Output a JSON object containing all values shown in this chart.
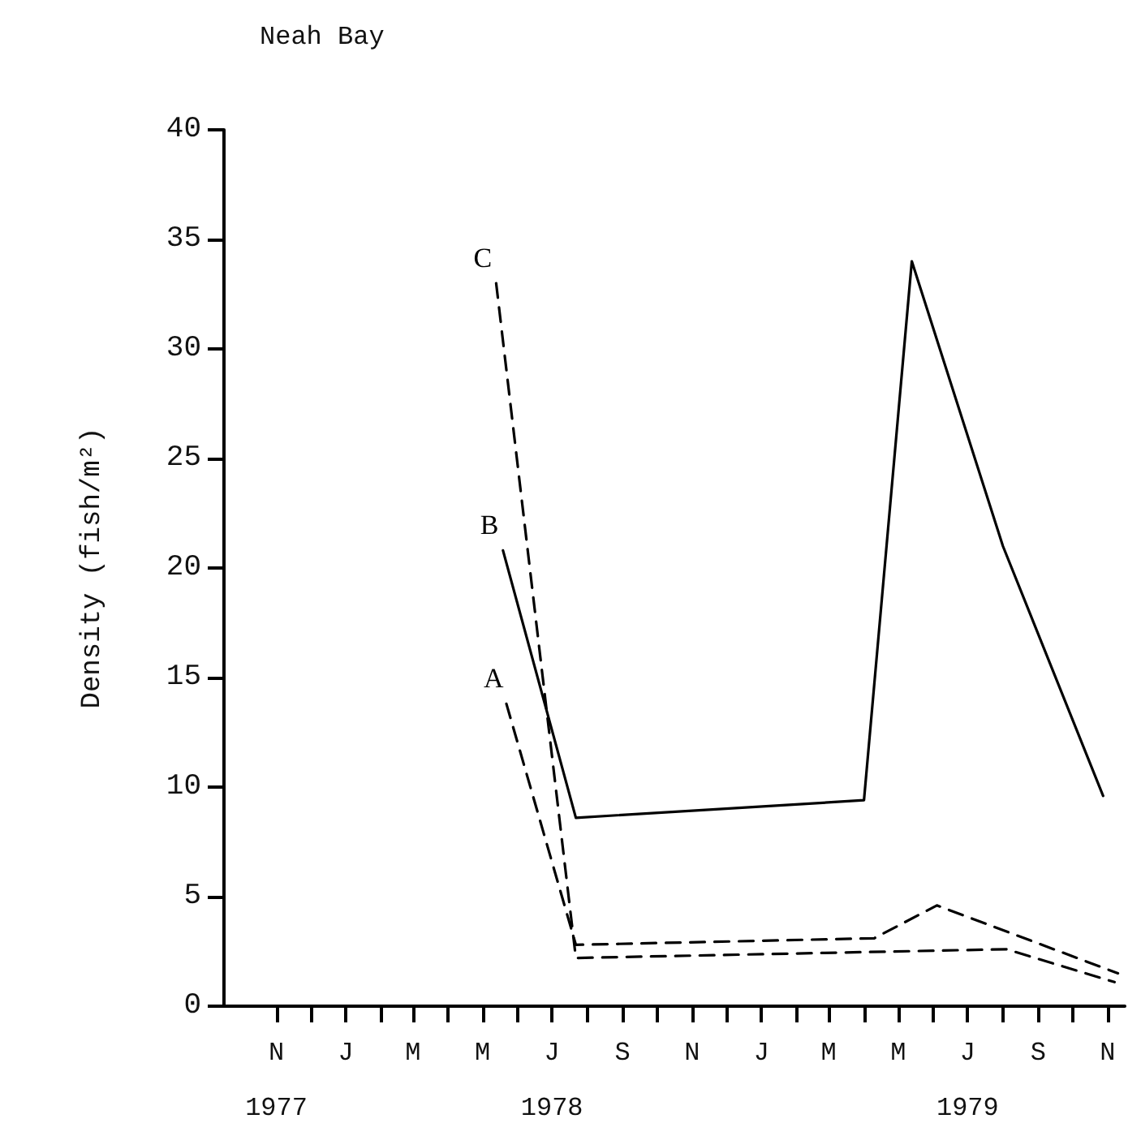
{
  "chart_data": {
    "type": "line",
    "title": "Neah Bay",
    "ylabel": "Density (fish/m²)",
    "xlim": [
      "1977-09-16",
      "1979-11-16"
    ],
    "ylim": [
      0,
      40
    ],
    "yticks": [
      0,
      5,
      10,
      15,
      20,
      25,
      30,
      35,
      40
    ],
    "xticks": [
      {
        "value": "1977-11-01",
        "label": "N\n1977"
      },
      {
        "value": "1977-12-01",
        "label": null
      },
      {
        "value": "1978-01-01",
        "label": "J"
      },
      {
        "value": "1978-02-01",
        "label": null
      },
      {
        "value": "1978-03-01",
        "label": "M"
      },
      {
        "value": "1978-04-01",
        "label": null
      },
      {
        "value": "1978-05-01",
        "label": "M"
      },
      {
        "value": "1978-06-01",
        "label": null
      },
      {
        "value": "1978-07-01",
        "label": "J\n1978"
      },
      {
        "value": "1978-08-01",
        "label": null
      },
      {
        "value": "1978-09-01",
        "label": "S"
      },
      {
        "value": "1978-10-01",
        "label": null
      },
      {
        "value": "1978-11-01",
        "label": "N"
      },
      {
        "value": "1978-12-01",
        "label": null
      },
      {
        "value": "1979-01-01",
        "label": "J"
      },
      {
        "value": "1979-02-01",
        "label": null
      },
      {
        "value": "1979-03-01",
        "label": "M"
      },
      {
        "value": "1979-04-01",
        "label": null
      },
      {
        "value": "1979-05-01",
        "label": "M"
      },
      {
        "value": "1979-06-01",
        "label": null
      },
      {
        "value": "1979-07-01",
        "label": "J\n1979"
      },
      {
        "value": "1979-08-01",
        "label": null
      },
      {
        "value": "1979-09-01",
        "label": "S"
      },
      {
        "value": "1979-10-01",
        "label": null
      },
      {
        "value": "1979-11-01",
        "label": "N"
      }
    ],
    "grid": false,
    "legend": false,
    "marker": "none",
    "series": [
      {
        "name": "A",
        "color": "#000000",
        "line_style": "dashed",
        "x": [
          "1978-05-22",
          "1978-07-22",
          "1979-04-10",
          "1979-06-04",
          "1979-11-10"
        ],
        "values": [
          13.8,
          2.8,
          3.1,
          4.6,
          1.5
        ]
      },
      {
        "name": "B",
        "color": "#000000",
        "line_style": "solid",
        "x": [
          "1978-05-19",
          "1978-07-22",
          "1979-04-01",
          "1979-05-13",
          "1979-08-01",
          "1979-10-28"
        ],
        "values": [
          20.8,
          8.6,
          9.4,
          34,
          21,
          9.6
        ]
      },
      {
        "name": "C",
        "color": "#000000",
        "line_style": "dashed",
        "x": [
          "1978-05-13",
          "1978-07-22",
          "1979-08-04",
          "1979-11-07"
        ],
        "values": [
          33,
          2.2,
          2.6,
          1.1
        ]
      }
    ]
  }
}
